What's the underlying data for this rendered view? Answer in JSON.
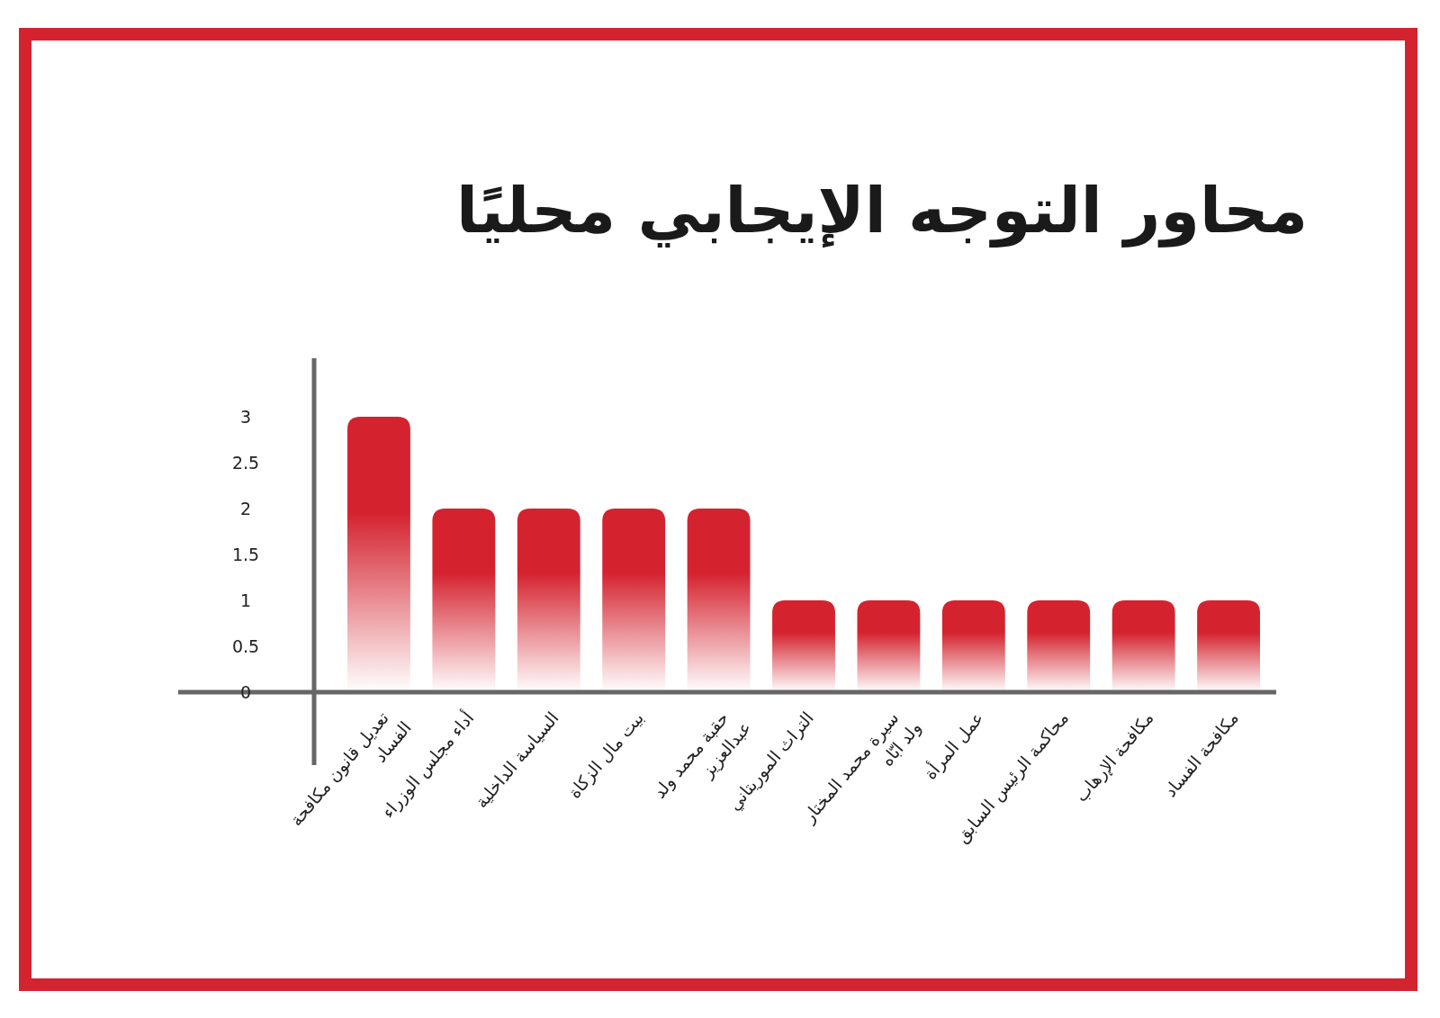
{
  "chart_data": {
    "type": "bar",
    "title": "محاور التوجه الإيجابي محليًا",
    "categories": [
      "تعديل قانون مكافحة الفساد",
      "أداء مجلس الوزراء",
      "السياسة الداخلية",
      "بيت مال الزكاة",
      "حقبة محمد ولد عبدالعزيز",
      "التراث الموريتاني",
      "سيرة محمد المختار ولد ابّاه",
      "عمل المرأة",
      "محاكمة الرئيس السابق",
      "مكافحة الإرهاب",
      "مكافحة الفساد"
    ],
    "values": [
      3,
      2,
      2,
      2,
      2,
      1,
      1,
      1,
      1,
      1,
      1
    ],
    "color": "#d4232f",
    "ylim": [
      0,
      3
    ],
    "yticks": [
      0,
      0.5,
      1,
      1.5,
      2,
      2.5,
      3
    ]
  }
}
